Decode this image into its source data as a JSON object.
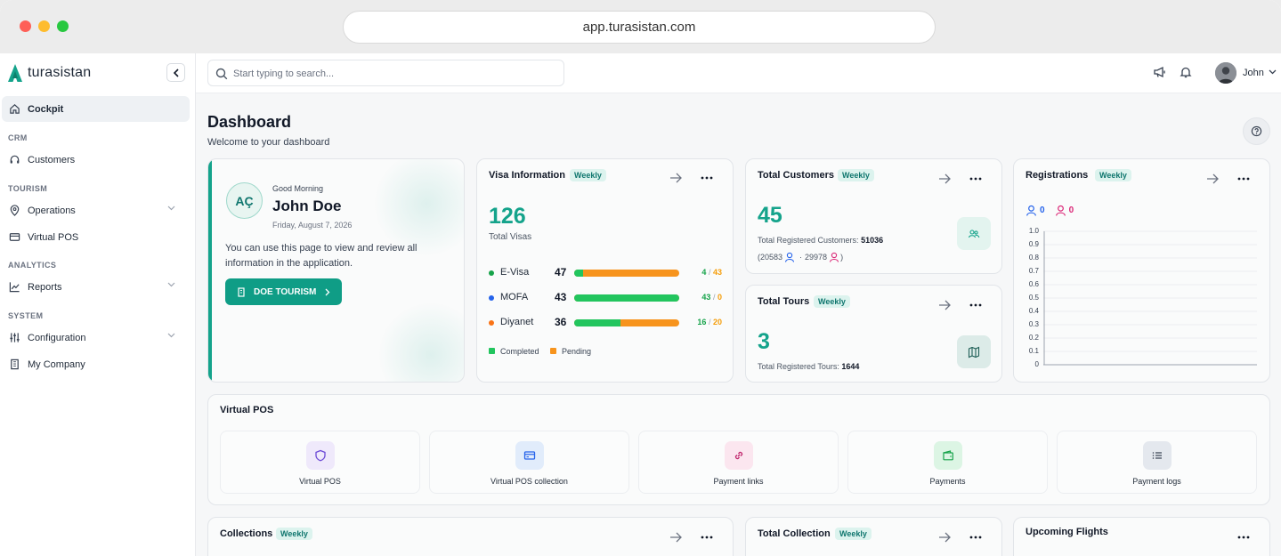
{
  "browser": {
    "url": "app.turasistan.com"
  },
  "brand": {
    "name": "turasistan",
    "accent": "#14a38b"
  },
  "sidebar": {
    "collapse_icon": "chevron-left-icon",
    "items": [
      {
        "label": "Cockpit",
        "icon": "home-icon",
        "active": true
      },
      {
        "label": "Customers",
        "icon": "headset-icon"
      },
      {
        "label": "Operations",
        "icon": "map-pin-icon",
        "expandable": true
      },
      {
        "label": "Virtual POS",
        "icon": "card-icon"
      },
      {
        "label": "Reports",
        "icon": "line-chart-icon",
        "expandable": true
      },
      {
        "label": "Configuration",
        "icon": "sliders-icon",
        "expandable": true
      },
      {
        "label": "My Company",
        "icon": "building-icon"
      }
    ],
    "sections": [
      "CRM",
      "TOURISM",
      "ANALYTICS",
      "SYSTEM"
    ]
  },
  "topbar": {
    "search_placeholder": "Start typing to search...",
    "user_name": "John"
  },
  "page": {
    "title": "Dashboard",
    "subtitle": "Welcome to your dashboard"
  },
  "welcome": {
    "initials": "AÇ",
    "greeting": "Good Morning",
    "name": "John Doe",
    "date": "Friday, August 7, 2026",
    "description": "You can use this page to view and review all information in the application.",
    "company_button": "DOE TOURISM"
  },
  "visa": {
    "title": "Visa Information",
    "badge": "Weekly",
    "total": "126",
    "total_label": "Total Visas",
    "rows": [
      {
        "name": "E-Visa",
        "total": "47",
        "completed": "4",
        "pending": "43",
        "completed_fraction": 0.085,
        "dot_color": "#16a34a"
      },
      {
        "name": "MOFA",
        "total": "43",
        "completed": "43",
        "pending": "0",
        "completed_fraction": 1.0,
        "dot_color": "#2563eb"
      },
      {
        "name": "Diyanet",
        "total": "36",
        "completed": "16",
        "pending": "20",
        "completed_fraction": 0.444,
        "dot_color": "#f97316"
      }
    ],
    "sep": "/",
    "legend_completed": "Completed",
    "legend_pending": "Pending",
    "completed_color": "#22c55e",
    "pending_color": "#f7941d"
  },
  "customers": {
    "title": "Total Customers",
    "badge": "Weekly",
    "total": "45",
    "registered_label": "Total Registered Customers:",
    "registered_value": "51036",
    "paren_open": "(",
    "male": "20583",
    "dot_sep": "·",
    "female": "29978",
    "paren_close": ")"
  },
  "tours": {
    "title": "Total Tours",
    "badge": "Weekly",
    "total": "3",
    "registered_label": "Total Registered Tours:",
    "registered_value": "1644"
  },
  "registrations": {
    "title": "Registrations",
    "badge": "Weekly",
    "male_count": "0",
    "female_count": "0",
    "male_color": "#2563eb",
    "female_color": "#db2777"
  },
  "chart_data": {
    "type": "line",
    "title": "",
    "series": [],
    "ylim": [
      0,
      1.0
    ],
    "yticks": [
      "1.0",
      "0.9",
      "0.8",
      "0.7",
      "0.6",
      "0.5",
      "0.4",
      "0.3",
      "0.2",
      "0.1",
      "0"
    ],
    "grid": true
  },
  "virtual_pos": {
    "title": "Virtual POS",
    "tiles": [
      {
        "label": "Virtual POS",
        "icon": "shield-icon",
        "bg": "#efe9fb",
        "fg": "#6d4ad6"
      },
      {
        "label": "Virtual POS collection",
        "icon": "card-icon",
        "bg": "#e1ecfb",
        "fg": "#2563eb"
      },
      {
        "label": "Payment links",
        "icon": "link-icon",
        "bg": "#fbe6ef",
        "fg": "#c0266d"
      },
      {
        "label": "Payments",
        "icon": "wallet-icon",
        "bg": "#dcf5e4",
        "fg": "#16a34a"
      },
      {
        "label": "Payment logs",
        "icon": "list-icon",
        "bg": "#e4e8ee",
        "fg": "#374151"
      }
    ]
  },
  "bottom_cards": {
    "collections_title": "Collections",
    "collections_badge": "Weekly",
    "total_collection_title": "Total Collection",
    "total_collection_badge": "Weekly",
    "flights_title": "Upcoming Flights"
  }
}
